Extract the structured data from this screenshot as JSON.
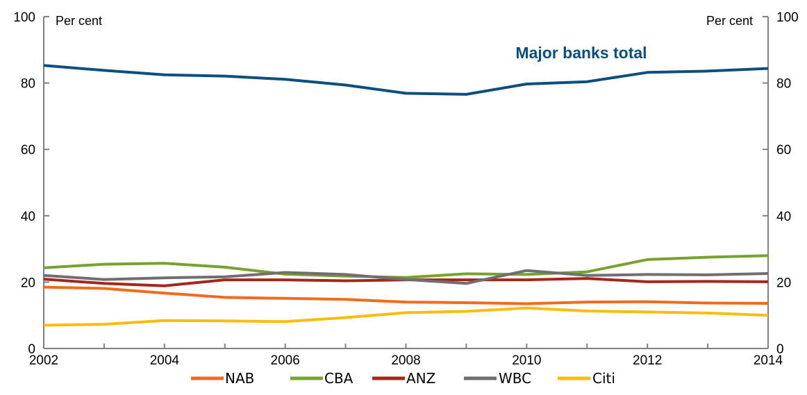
{
  "chart_data": {
    "type": "line",
    "x": [
      2002,
      2003,
      2004,
      2005,
      2006,
      2007,
      2008,
      2009,
      2010,
      2011,
      2012,
      2013,
      2014
    ],
    "x_ticks": [
      "2002",
      "2004",
      "2006",
      "2008",
      "2010",
      "2012",
      "2014"
    ],
    "xlim": [
      2002,
      2014
    ],
    "ylim": [
      0,
      100
    ],
    "y_ticks": [
      "0",
      "20",
      "40",
      "60",
      "80",
      "100"
    ],
    "ylabel_left": "Per cent",
    "ylabel_right": "Per cent",
    "annotation": "Major banks total",
    "grid": false,
    "legend_position": "bottom",
    "total_series": {
      "values": [
        85.3,
        83.8,
        82.5,
        82.1,
        81.1,
        79.4,
        76.9,
        76.6,
        79.7,
        80.4,
        83.2,
        83.6,
        84.4
      ],
      "color": "#0b4f80"
    },
    "series": [
      {
        "name": "NAB",
        "color": "#f26b1d",
        "values": [
          18.5,
          18.1,
          16.7,
          15.4,
          15.1,
          14.8,
          14.0,
          13.8,
          13.5,
          14.0,
          14.1,
          13.7,
          13.6
        ]
      },
      {
        "name": "CBA",
        "color": "#78a22f",
        "values": [
          24.3,
          25.4,
          25.7,
          24.5,
          22.4,
          21.8,
          21.4,
          22.5,
          22.3,
          23.1,
          26.8,
          27.5,
          28.0
        ]
      },
      {
        "name": "ANZ",
        "color": "#a6261c",
        "values": [
          20.9,
          19.6,
          18.9,
          20.7,
          20.7,
          20.4,
          20.7,
          20.7,
          20.7,
          21.1,
          20.1,
          20.2,
          20.1
        ]
      },
      {
        "name": "WBC",
        "color": "#6f6f6f",
        "values": [
          22.0,
          20.8,
          21.3,
          21.6,
          22.9,
          22.3,
          20.8,
          19.6,
          23.5,
          22.0,
          22.3,
          22.2,
          22.6
        ]
      },
      {
        "name": "Citi",
        "color": "#fbbc0e",
        "values": [
          7.0,
          7.3,
          8.4,
          8.3,
          8.1,
          9.3,
          10.8,
          11.2,
          12.2,
          11.3,
          11.0,
          10.7,
          10.0
        ]
      }
    ]
  }
}
